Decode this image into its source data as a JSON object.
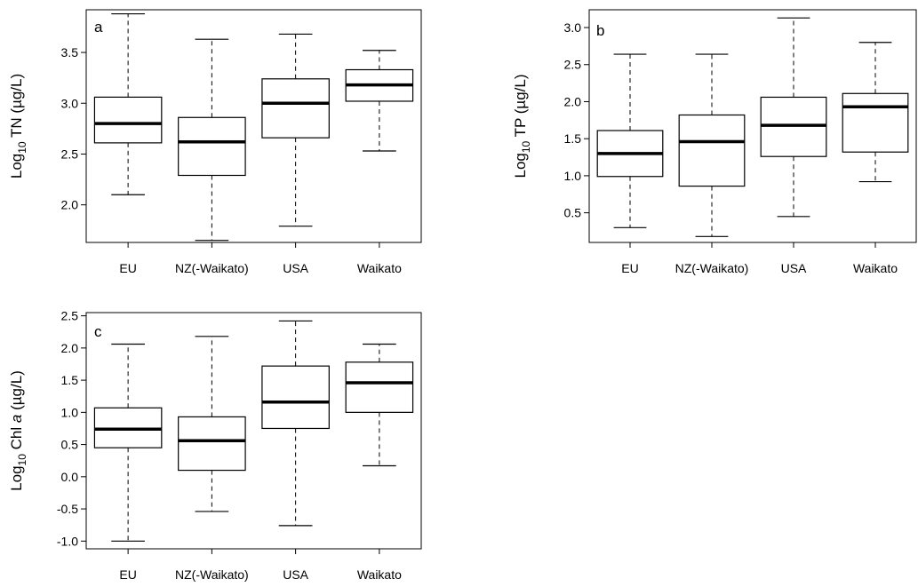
{
  "chart_data": [
    {
      "type": "box",
      "panel_label": "a",
      "ylabel": {
        "pre": "Log",
        "sub": "10",
        "post": " TN (µg/L)"
      },
      "categories": [
        "EU",
        "NZ(-Waikato)",
        "USA",
        "Waikato"
      ],
      "yticks": [
        "2.0",
        "2.5",
        "3.0",
        "3.5"
      ],
      "ylim": [
        1.63,
        3.92
      ],
      "boxes": [
        {
          "min": 2.1,
          "q1": 2.61,
          "median": 2.8,
          "q3": 3.06,
          "max": 3.88
        },
        {
          "min": 1.65,
          "q1": 2.29,
          "median": 2.62,
          "q3": 2.86,
          "max": 3.63
        },
        {
          "min": 1.79,
          "q1": 2.66,
          "median": 3.0,
          "q3": 3.24,
          "max": 3.68
        },
        {
          "min": 2.53,
          "q1": 3.02,
          "median": 3.18,
          "q3": 3.33,
          "max": 3.52
        }
      ]
    },
    {
      "type": "box",
      "panel_label": "b",
      "ylabel": {
        "pre": "Log",
        "sub": "10",
        "post": " TP (µg/L)"
      },
      "categories": [
        "EU",
        "NZ(-Waikato)",
        "USA",
        "Waikato"
      ],
      "yticks": [
        "0.5",
        "1.0",
        "1.5",
        "2.0",
        "2.5",
        "3.0"
      ],
      "ylim": [
        0.1,
        3.24
      ],
      "boxes": [
        {
          "min": 0.3,
          "q1": 0.99,
          "median": 1.3,
          "q3": 1.61,
          "max": 2.64
        },
        {
          "min": 0.18,
          "q1": 0.86,
          "median": 1.46,
          "q3": 1.82,
          "max": 2.64
        },
        {
          "min": 0.45,
          "q1": 1.26,
          "median": 1.68,
          "q3": 2.06,
          "max": 3.13
        },
        {
          "min": 0.92,
          "q1": 1.32,
          "median": 1.93,
          "q3": 2.11,
          "max": 2.8
        }
      ]
    },
    {
      "type": "box",
      "panel_label": "c",
      "ylabel": {
        "pre": "Log",
        "sub": "10",
        "post": " Chl ",
        "italic": "a",
        "post2": " (µg/L)"
      },
      "categories": [
        "EU",
        "NZ(-Waikato)",
        "USA",
        "Waikato"
      ],
      "yticks": [
        "-1.0",
        "-0.5",
        "0.0",
        "0.5",
        "1.0",
        "1.5",
        "2.0",
        "2.5"
      ],
      "ylim": [
        -1.12,
        2.55
      ],
      "boxes": [
        {
          "min": -1.0,
          "q1": 0.45,
          "median": 0.74,
          "q3": 1.07,
          "max": 2.06
        },
        {
          "min": -0.54,
          "q1": 0.1,
          "median": 0.56,
          "q3": 0.93,
          "max": 2.18
        },
        {
          "min": -0.76,
          "q1": 0.75,
          "median": 1.16,
          "q3": 1.72,
          "max": 2.42
        },
        {
          "min": 0.17,
          "q1": 1.0,
          "median": 1.46,
          "q3": 1.78,
          "max": 2.06
        }
      ]
    }
  ]
}
